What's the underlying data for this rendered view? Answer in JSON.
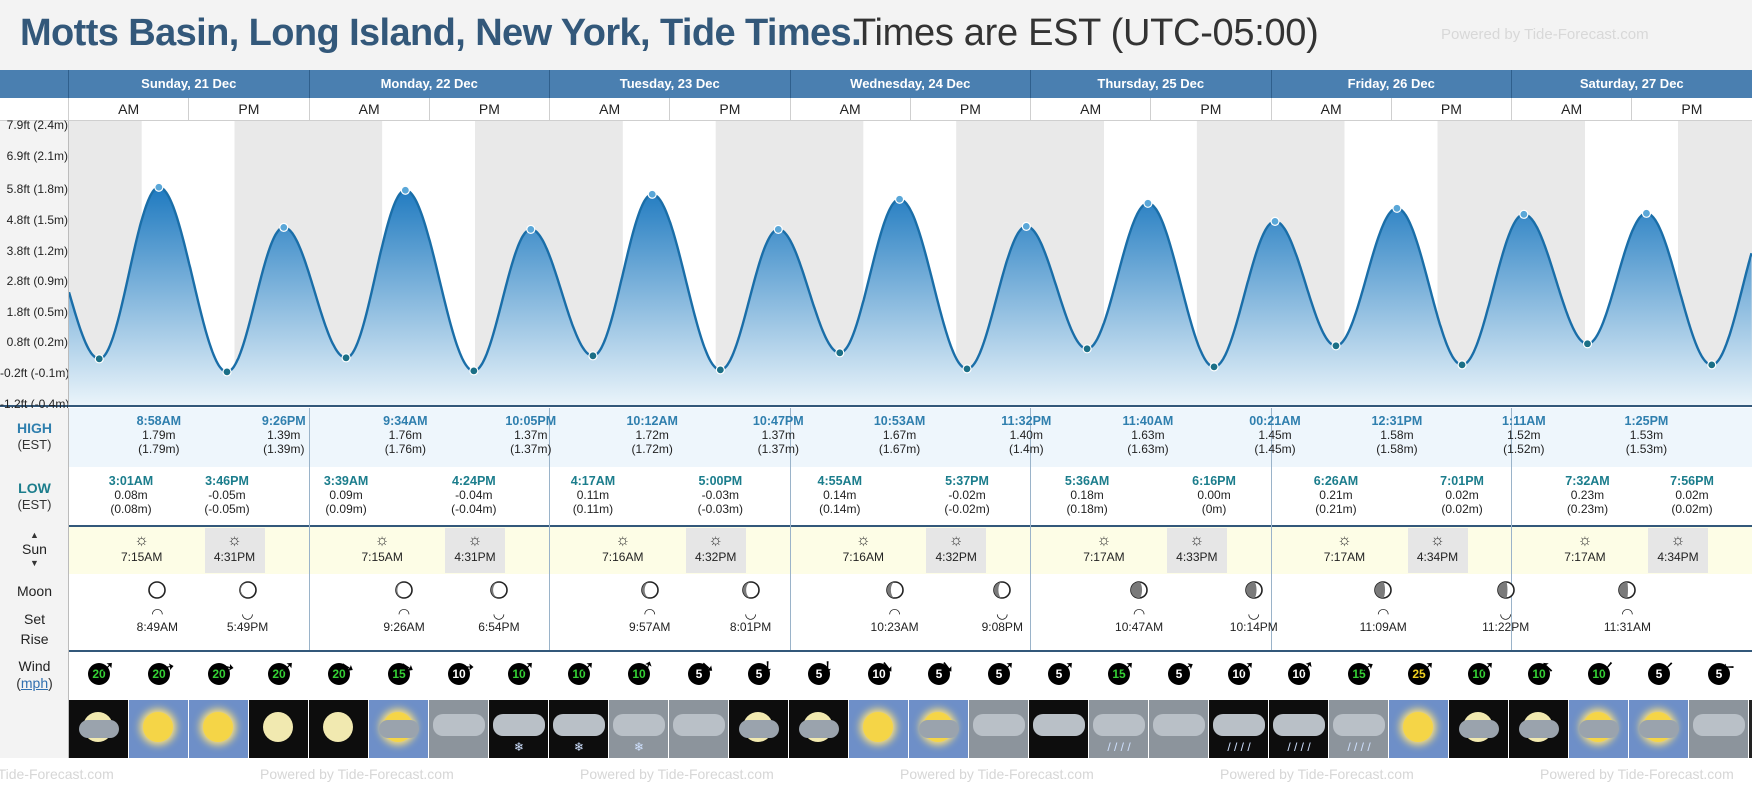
{
  "header": {
    "title": "Motts Basin, Long Island, New York, Tide Times.",
    "timezone": "Times are EST (UTC-05:00)",
    "powered_by": "Powered by Tide-Forecast.com"
  },
  "row_labels": {
    "high": "HIGH",
    "high_tz": "(EST)",
    "low": "LOW",
    "low_tz": "(EST)",
    "sun": "Sun",
    "moon": "Moon",
    "set": "Set",
    "rise": "Rise",
    "wind": "Wind",
    "wind_unit": "mph"
  },
  "days": [
    {
      "label": "Sunday, 21 Dec"
    },
    {
      "label": "Monday, 22 Dec"
    },
    {
      "label": "Tuesday, 23 Dec"
    },
    {
      "label": "Wednesday, 24 Dec"
    },
    {
      "label": "Thursday, 25 Dec"
    },
    {
      "label": "Friday, 26 Dec"
    },
    {
      "label": "Saturday, 27 Dec"
    }
  ],
  "am_label": "AM",
  "pm_label": "PM",
  "chart_data": {
    "type": "area",
    "title": "",
    "x_unit": "hours since Sunday 21 Dec 00:00 EST",
    "y_ticks": [
      "-1.2ft (-0.4m)",
      "-0.2ft (-0.1m)",
      "0.8ft (0.2m)",
      "1.8ft (0.5m)",
      "2.8ft (0.9m)",
      "3.8ft (1.2m)",
      "4.8ft (1.5m)",
      "5.8ft (1.8m)",
      "6.9ft (2.1m)",
      "7.9ft (2.4m)"
    ],
    "y_tick_values_m": [
      -0.366,
      -0.061,
      0.244,
      0.549,
      0.853,
      1.158,
      1.463,
      1.768,
      2.103,
      2.408
    ],
    "ylim_m": [
      -0.38,
      2.45
    ],
    "series": [
      {
        "name": "",
        "points": [
          {
            "day": "Sunday, 21 Dec",
            "time": "3:01AM",
            "kind": "low",
            "ft": "0.08m",
            "m": 0.08,
            "m_label": "(0.08m)"
          },
          {
            "day": "Sunday, 21 Dec",
            "time": "8:58AM",
            "kind": "high",
            "ft": "1.79m",
            "m": 1.79,
            "m_label": "(1.79m)"
          },
          {
            "day": "Sunday, 21 Dec",
            "time": "3:46PM",
            "kind": "low",
            "ft": "-0.05m",
            "m": -0.05,
            "m_label": "(-0.05m)"
          },
          {
            "day": "Sunday, 21 Dec",
            "time": "9:26PM",
            "kind": "high",
            "ft": "1.39m",
            "m": 1.39,
            "m_label": "(1.39m)"
          },
          {
            "day": "Monday, 22 Dec",
            "time": "3:39AM",
            "kind": "low",
            "ft": "0.09m",
            "m": 0.09,
            "m_label": "(0.09m)"
          },
          {
            "day": "Monday, 22 Dec",
            "time": "9:34AM",
            "kind": "high",
            "ft": "1.76m",
            "m": 1.76,
            "m_label": "(1.76m)"
          },
          {
            "day": "Monday, 22 Dec",
            "time": "4:24PM",
            "kind": "low",
            "ft": "-0.04m",
            "m": -0.04,
            "m_label": "(-0.04m)"
          },
          {
            "day": "Monday, 22 Dec",
            "time": "10:05PM",
            "kind": "high",
            "ft": "1.37m",
            "m": 1.37,
            "m_label": "(1.37m)"
          },
          {
            "day": "Tuesday, 23 Dec",
            "time": "4:17AM",
            "kind": "low",
            "ft": "0.11m",
            "m": 0.11,
            "m_label": "(0.11m)"
          },
          {
            "day": "Tuesday, 23 Dec",
            "time": "10:12AM",
            "kind": "high",
            "ft": "1.72m",
            "m": 1.72,
            "m_label": "(1.72m)"
          },
          {
            "day": "Tuesday, 23 Dec",
            "time": "5:00PM",
            "kind": "low",
            "ft": "-0.03m",
            "m": -0.03,
            "m_label": "(-0.03m)"
          },
          {
            "day": "Tuesday, 23 Dec",
            "time": "10:47PM",
            "kind": "high",
            "ft": "1.37m",
            "m": 1.37,
            "m_label": "(1.37m)"
          },
          {
            "day": "Wednesday, 24 Dec",
            "time": "4:55AM",
            "kind": "low",
            "ft": "0.14m",
            "m": 0.14,
            "m_label": "(0.14m)"
          },
          {
            "day": "Wednesday, 24 Dec",
            "time": "10:53AM",
            "kind": "high",
            "ft": "1.67m",
            "m": 1.67,
            "m_label": "(1.67m)"
          },
          {
            "day": "Wednesday, 24 Dec",
            "time": "5:37PM",
            "kind": "low",
            "ft": "-0.02m",
            "m": -0.02,
            "m_label": "(-0.02m)"
          },
          {
            "day": "Wednesday, 24 Dec",
            "time": "11:32PM",
            "kind": "high",
            "ft": "1.40m",
            "m": 1.4,
            "m_label": "(1.4m)"
          },
          {
            "day": "Thursday, 25 Dec",
            "time": "5:36AM",
            "kind": "low",
            "ft": "0.18m",
            "m": 0.18,
            "m_label": "(0.18m)"
          },
          {
            "day": "Thursday, 25 Dec",
            "time": "11:40AM",
            "kind": "high",
            "ft": "1.63m",
            "m": 1.63,
            "m_label": "(1.63m)"
          },
          {
            "day": "Thursday, 25 Dec",
            "time": "6:16PM",
            "kind": "low",
            "ft": "0.00m",
            "m": 0.0,
            "m_label": "(0m)"
          },
          {
            "day": "Friday, 26 Dec",
            "time": "00:21AM",
            "kind": "high",
            "ft": "1.45m",
            "m": 1.45,
            "m_label": "(1.45m)"
          },
          {
            "day": "Friday, 26 Dec",
            "time": "6:26AM",
            "kind": "low",
            "ft": "0.21m",
            "m": 0.21,
            "m_label": "(0.21m)"
          },
          {
            "day": "Friday, 26 Dec",
            "time": "12:31PM",
            "kind": "high",
            "ft": "1.58m",
            "m": 1.58,
            "m_label": "(1.58m)"
          },
          {
            "day": "Friday, 26 Dec",
            "time": "7:01PM",
            "kind": "low",
            "ft": "0.02m",
            "m": 0.02,
            "m_label": "(0.02m)"
          },
          {
            "day": "Saturday, 27 Dec",
            "time": "1:11AM",
            "kind": "high",
            "ft": "1.52m",
            "m": 1.52,
            "m_label": "(1.52m)"
          },
          {
            "day": "Saturday, 27 Dec",
            "time": "7:32AM",
            "kind": "low",
            "ft": "0.23m",
            "m": 0.23,
            "m_label": "(0.23m)"
          },
          {
            "day": "Saturday, 27 Dec",
            "time": "1:25PM",
            "kind": "high",
            "ft": "1.53m",
            "m": 1.53,
            "m_label": "(1.53m)"
          },
          {
            "day": "Saturday, 27 Dec",
            "time": "7:56PM",
            "kind": "low",
            "ft": "0.02m",
            "m": 0.02,
            "m_label": "(0.02m)"
          }
        ]
      }
    ],
    "grid": false,
    "colors": {
      "fill_top": "#1f7ac0",
      "fill_bottom": "#e6f1f9",
      "line": "#1a6ea8",
      "night": "#e9e9e9"
    }
  },
  "sun": [
    {
      "day": "Sunday, 21 Dec",
      "rise": "7:15AM",
      "set": "4:31PM"
    },
    {
      "day": "Monday, 22 Dec",
      "rise": "7:15AM",
      "set": "4:31PM"
    },
    {
      "day": "Tuesday, 23 Dec",
      "rise": "7:16AM",
      "set": "4:32PM"
    },
    {
      "day": "Wednesday, 24 Dec",
      "rise": "7:16AM",
      "set": "4:32PM"
    },
    {
      "day": "Thursday, 25 Dec",
      "rise": "7:17AM",
      "set": "4:33PM"
    },
    {
      "day": "Friday, 26 Dec",
      "rise": "7:17AM",
      "set": "4:34PM"
    },
    {
      "day": "Saturday, 27 Dec",
      "rise": "7:17AM",
      "set": "4:34PM"
    }
  ],
  "moon": [
    {
      "time": "8:49AM",
      "kind": "rise",
      "phase": 0.0
    },
    {
      "time": "5:49PM",
      "kind": "set",
      "phase": 0.05
    },
    {
      "time": "9:26AM",
      "kind": "rise",
      "phase": 0.08
    },
    {
      "time": "6:54PM",
      "kind": "set",
      "phase": 0.12
    },
    {
      "time": "9:57AM",
      "kind": "rise",
      "phase": 0.15
    },
    {
      "time": "8:01PM",
      "kind": "set",
      "phase": 0.18
    },
    {
      "time": "10:23AM",
      "kind": "rise",
      "phase": 0.22
    },
    {
      "time": "9:08PM",
      "kind": "set",
      "phase": 0.25
    },
    {
      "time": "10:47AM",
      "kind": "rise",
      "phase": 0.28
    },
    {
      "time": "10:14PM",
      "kind": "set",
      "phase": 0.31
    },
    {
      "time": "11:09AM",
      "kind": "rise",
      "phase": 0.34
    },
    {
      "time": "11:22PM",
      "kind": "set",
      "phase": 0.37
    },
    {
      "time": "11:31AM",
      "kind": "rise",
      "phase": 0.4
    }
  ],
  "wind": [
    {
      "speed": "20",
      "dir": 45,
      "color": "green"
    },
    {
      "speed": "20",
      "dir": 80,
      "color": "green"
    },
    {
      "speed": "20",
      "dir": 100,
      "color": "green"
    },
    {
      "speed": "20",
      "dir": 45,
      "color": "green"
    },
    {
      "speed": "20",
      "dir": 120,
      "color": "green"
    },
    {
      "speed": "15",
      "dir": 120,
      "color": "green"
    },
    {
      "speed": "10",
      "dir": 90,
      "color": "white"
    },
    {
      "speed": "10",
      "dir": 45,
      "color": "green"
    },
    {
      "speed": "10",
      "dir": 45,
      "color": "green"
    },
    {
      "speed": "10",
      "dir": 20,
      "color": "green"
    },
    {
      "speed": "5",
      "dir": 130,
      "color": "white"
    },
    {
      "speed": "5",
      "dir": 180,
      "color": "white"
    },
    {
      "speed": "5",
      "dir": 180,
      "color": "white"
    },
    {
      "speed": "10",
      "dir": 140,
      "color": "white"
    },
    {
      "speed": "5",
      "dir": 140,
      "color": "white"
    },
    {
      "speed": "5",
      "dir": 45,
      "color": "white"
    },
    {
      "speed": "5",
      "dir": 45,
      "color": "white"
    },
    {
      "speed": "15",
      "dir": 45,
      "color": "green"
    },
    {
      "speed": "5",
      "dir": 60,
      "color": "white"
    },
    {
      "speed": "10",
      "dir": 45,
      "color": "white"
    },
    {
      "speed": "10",
      "dir": 30,
      "color": "white"
    },
    {
      "speed": "15",
      "dir": 60,
      "color": "green"
    },
    {
      "speed": "25",
      "dir": 45,
      "color": "yellow"
    },
    {
      "speed": "10",
      "dir": 45,
      "color": "green"
    },
    {
      "speed": "10",
      "dir": 315,
      "color": "green"
    },
    {
      "speed": "10",
      "dir": 220,
      "color": "green"
    },
    {
      "speed": "5",
      "dir": 225,
      "color": "white"
    },
    {
      "speed": "5",
      "dir": 270,
      "color": "white"
    }
  ],
  "weather": [
    "night-partly-cloudy",
    "sunny",
    "sunny",
    "night-clear",
    "night-clear",
    "partly-cloudy",
    "overcast",
    "night-snow",
    "night-snow",
    "snow",
    "overcast",
    "night-partly-cloudy",
    "night-partly-cloudy",
    "sunny",
    "partly-cloudy",
    "overcast",
    "night-overcast",
    "rain",
    "overcast",
    "night-rain",
    "night-rain",
    "rain",
    "sunny",
    "night-partly-cloudy",
    "night-partly-cloudy",
    "partly-cloudy",
    "partly-cloudy",
    "overcast"
  ]
}
